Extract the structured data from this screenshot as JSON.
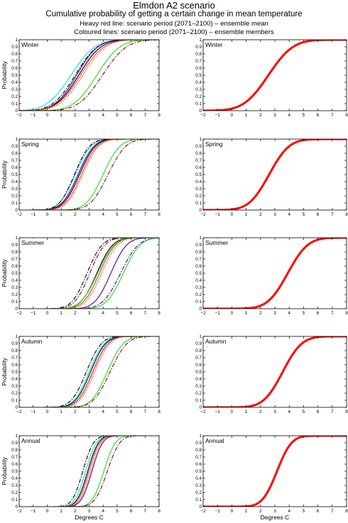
{
  "header": {
    "title": "Elmdon A2 scenario",
    "subtitle": "Cumulative probability of getting a certain change in mean temperature",
    "line1": "Heavy red line: scenario period (2071–2100) – ensemble mean",
    "line2": "Coloured lines: scenario period (2071–2100) – ensemble members"
  },
  "chart_data": {
    "type": "line",
    "xlabel": "Degrees C",
    "ylabel": "Probability",
    "xlim": [
      -2,
      8
    ],
    "ylim": [
      0,
      1
    ],
    "xticks": [
      "−2",
      "−1",
      "0",
      "1",
      "2",
      "3",
      "4",
      "5",
      "6",
      "7",
      "8"
    ],
    "yticks": [
      "0",
      "0.1",
      "0.2",
      "0.3",
      "0.4",
      "0.5",
      "0.6",
      "0.7",
      "0.8",
      "0.9",
      "1"
    ],
    "grid": false,
    "seasons": [
      {
        "label": "Winter",
        "mean_cdf": {
          "mu": 2.55,
          "sigma": 1.35
        },
        "members": [
          {
            "color": "#00e5e5",
            "style": "solid",
            "mu": 1.7,
            "sigma": 1.35
          },
          {
            "color": "#000000",
            "style": "dashdot",
            "mu": 2.0,
            "sigma": 1.25
          },
          {
            "color": "#4b0082",
            "style": "solid",
            "mu": 2.1,
            "sigma": 1.2
          },
          {
            "color": "#000000",
            "style": "solid",
            "mu": 2.25,
            "sigma": 1.25
          },
          {
            "color": "#ff00ff",
            "style": "dotted",
            "mu": 2.3,
            "sigma": 1.25
          },
          {
            "color": "#b8860b",
            "style": "solid",
            "mu": 2.4,
            "sigma": 1.3
          },
          {
            "color": "#ff0000",
            "style": "dotted",
            "mu": 2.55,
            "sigma": 1.3
          },
          {
            "color": "#22dd22",
            "style": "solid",
            "mu": 3.55,
            "sigma": 1.3
          },
          {
            "color": "#8b0000",
            "style": "dashdot",
            "mu": 3.95,
            "sigma": 1.35
          }
        ]
      },
      {
        "label": "Spring",
        "mean_cdf": {
          "mu": 2.6,
          "sigma": 1.1
        },
        "members": [
          {
            "color": "#00e5e5",
            "style": "solid",
            "mu": 2.0,
            "sigma": 0.9
          },
          {
            "color": "#000000",
            "style": "dashdot",
            "mu": 1.95,
            "sigma": 0.85
          },
          {
            "color": "#4b0082",
            "style": "solid",
            "mu": 2.2,
            "sigma": 0.9
          },
          {
            "color": "#000000",
            "style": "solid",
            "mu": 2.3,
            "sigma": 0.9
          },
          {
            "color": "#ff00ff",
            "style": "dotted",
            "mu": 2.35,
            "sigma": 0.9
          },
          {
            "color": "#b8860b",
            "style": "solid",
            "mu": 2.45,
            "sigma": 0.9
          },
          {
            "color": "#ff0000",
            "style": "dotted",
            "mu": 2.55,
            "sigma": 0.9
          },
          {
            "color": "#22dd22",
            "style": "solid",
            "mu": 4.0,
            "sigma": 0.95
          },
          {
            "color": "#8b0000",
            "style": "dashdot",
            "mu": 4.35,
            "sigma": 1.0
          }
        ]
      },
      {
        "label": "Summer",
        "mean_cdf": {
          "mu": 3.9,
          "sigma": 1.1
        },
        "members": [
          {
            "color": "#000000",
            "style": "dashdot",
            "mu": 2.85,
            "sigma": 0.85
          },
          {
            "color": "#8b0000",
            "style": "dashdot",
            "mu": 3.05,
            "sigma": 0.85
          },
          {
            "color": "#000000",
            "style": "solid",
            "mu": 3.55,
            "sigma": 0.9
          },
          {
            "color": "#ff00ff",
            "style": "dotted",
            "mu": 3.7,
            "sigma": 0.9
          },
          {
            "color": "#b8860b",
            "style": "solid",
            "mu": 3.75,
            "sigma": 0.9
          },
          {
            "color": "#22dd22",
            "style": "solid",
            "mu": 3.6,
            "sigma": 0.95
          },
          {
            "color": "#ff0000",
            "style": "dotted",
            "mu": 3.9,
            "sigma": 0.9
          },
          {
            "color": "#4b0082",
            "style": "solid",
            "mu": 4.55,
            "sigma": 0.9
          },
          {
            "color": "#4b0082",
            "style": "dashdot",
            "mu": 5.25,
            "sigma": 1.0
          },
          {
            "color": "#22dd22",
            "style": "solid",
            "mu": 5.45,
            "sigma": 0.95
          }
        ]
      },
      {
        "label": "Autumn",
        "mean_cdf": {
          "mu": 3.55,
          "sigma": 1.05
        },
        "members": [
          {
            "color": "#000000",
            "style": "dashdot",
            "mu": 2.8,
            "sigma": 0.85
          },
          {
            "color": "#00e5e5",
            "style": "solid",
            "mu": 3.0,
            "sigma": 0.85
          },
          {
            "color": "#000000",
            "style": "solid",
            "mu": 3.1,
            "sigma": 0.85
          },
          {
            "color": "#4b0082",
            "style": "solid",
            "mu": 3.25,
            "sigma": 0.85
          },
          {
            "color": "#b8860b",
            "style": "solid",
            "mu": 3.25,
            "sigma": 0.85
          },
          {
            "color": "#ff00ff",
            "style": "dotted",
            "mu": 3.3,
            "sigma": 0.85
          },
          {
            "color": "#ff0000",
            "style": "dotted",
            "mu": 3.4,
            "sigma": 0.85
          },
          {
            "color": "#22dd22",
            "style": "solid",
            "mu": 4.3,
            "sigma": 0.9
          },
          {
            "color": "#8b0000",
            "style": "dashdot",
            "mu": 4.5,
            "sigma": 0.95
          }
        ]
      },
      {
        "label": "Annual",
        "mean_cdf": {
          "mu": 3.15,
          "sigma": 0.8
        },
        "members": [
          {
            "color": "#000000",
            "style": "dashdot",
            "mu": 2.55,
            "sigma": 0.6
          },
          {
            "color": "#00e5e5",
            "style": "solid",
            "mu": 2.75,
            "sigma": 0.6
          },
          {
            "color": "#000000",
            "style": "solid",
            "mu": 2.9,
            "sigma": 0.6
          },
          {
            "color": "#ff00ff",
            "style": "dotted",
            "mu": 2.95,
            "sigma": 0.6
          },
          {
            "color": "#b8860b",
            "style": "solid",
            "mu": 3.0,
            "sigma": 0.6
          },
          {
            "color": "#4b0082",
            "style": "solid",
            "mu": 3.2,
            "sigma": 0.6
          },
          {
            "color": "#ff0000",
            "style": "dotted",
            "mu": 3.1,
            "sigma": 0.6
          },
          {
            "color": "#22dd22",
            "style": "solid",
            "mu": 4.05,
            "sigma": 0.65
          },
          {
            "color": "#8b0000",
            "style": "dashdot",
            "mu": 4.3,
            "sigma": 0.7
          }
        ]
      }
    ],
    "mean_line_color": "#ff0000"
  }
}
